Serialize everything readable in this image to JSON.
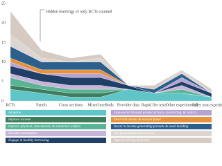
{
  "chart_data": {
    "type": "stacked_area",
    "annotation": "Hidden learnings of only RCTs counted",
    "categories": [
      "RCTs",
      "Panels",
      "Cross sections",
      "Mixed methods",
      "Provider data",
      "Rapid fire tests",
      "Other experimental",
      "Other non experimental"
    ],
    "ylim": [
      0,
      25
    ],
    "yticks": [
      0,
      5,
      10,
      15,
      20,
      25
    ],
    "series": [
      {
        "name": "Adoption",
        "color": "#5ec6c8",
        "values": [
          3,
          2,
          1,
          1,
          3,
          2,
          2,
          1
        ]
      },
      {
        "name": "Improve income",
        "color": "#3e7d5c",
        "values": [
          1,
          1,
          1,
          1,
          0,
          0,
          0,
          0
        ]
      },
      {
        "name": "Improve physical, educational, & emotional welfare",
        "color": "#59b496",
        "values": [
          2,
          1,
          1,
          1,
          0,
          0,
          1,
          0
        ]
      },
      {
        "name": "Smooth consumption",
        "color": "#c8b4d8",
        "values": [
          1,
          1,
          1,
          1,
          0,
          0,
          1,
          0
        ]
      },
      {
        "name": "Engage in healthy borrowing",
        "color": "#203f66",
        "values": [
          2,
          2,
          2,
          2,
          1,
          0,
          1,
          1
        ]
      },
      {
        "name": "Empowered through greater privacy, monitoring, & control",
        "color": "#b7a2d4",
        "values": [
          1,
          0,
          1,
          1,
          0,
          0,
          1,
          0
        ]
      },
      {
        "name": "Deal with shocks & recover faster",
        "color": "#e8923a",
        "values": [
          1,
          1,
          1,
          1,
          0,
          0,
          0,
          0
        ]
      },
      {
        "name": "Invest in income generating pursuits & asset building",
        "color": "#2c5f8c",
        "values": [
          3,
          2,
          2,
          2,
          0,
          1,
          1,
          0
        ]
      },
      {
        "name": "Use formal financial services",
        "color": "#dcd6d2",
        "values": [
          3,
          1,
          0,
          1,
          0,
          0,
          1,
          0
        ]
      },
      {
        "name": "Improve savings behavior",
        "color": "#d6cbc3",
        "values": [
          6,
          2,
          1,
          1,
          0,
          1,
          0,
          1
        ]
      }
    ]
  }
}
